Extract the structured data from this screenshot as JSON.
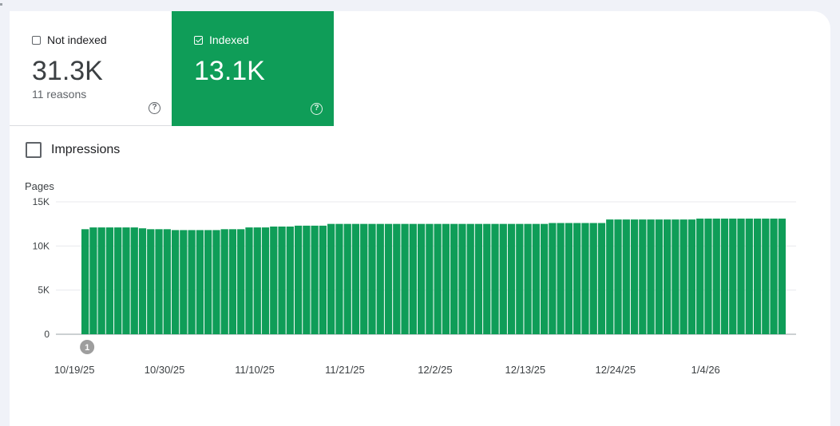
{
  "tiles": {
    "not_indexed": {
      "label": "Not indexed",
      "value": "31.3K",
      "sub": "11 reasons",
      "help_icon": "help-circle-icon"
    },
    "indexed": {
      "label": "Indexed",
      "value": "13.1K",
      "help_icon": "help-circle-icon"
    }
  },
  "impressions": {
    "label": "Impressions"
  },
  "colors": {
    "accent": "#0f9d58",
    "annotation": "#9e9e9e"
  },
  "chart_data": {
    "type": "bar",
    "ylabel": "Pages",
    "ylim": [
      0,
      15000
    ],
    "yticks": [
      0,
      5000,
      10000,
      15000
    ],
    "ytick_labels": [
      "0",
      "5K",
      "10K",
      "15K"
    ],
    "xtick_labels": [
      "10/19/25",
      "10/30/25",
      "11/10/25",
      "11/21/25",
      "12/2/25",
      "12/13/25",
      "12/24/25",
      "1/4/26"
    ],
    "xtick_indices": [
      0,
      11,
      22,
      33,
      44,
      55,
      66,
      77
    ],
    "annotation": {
      "label": "1",
      "index": 0
    },
    "grid": true,
    "series": [
      {
        "values": [
          11900,
          12100,
          12100,
          12100,
          12100,
          12100,
          12100,
          12000,
          11900,
          11900,
          11900,
          11800,
          11800,
          11800,
          11800,
          11800,
          11800,
          11900,
          11900,
          11900,
          12100,
          12100,
          12100,
          12200,
          12200,
          12200,
          12300,
          12300,
          12300,
          12300,
          12500,
          12500,
          12500,
          12500,
          12500,
          12500,
          12500,
          12500,
          12500,
          12500,
          12500,
          12500,
          12500,
          12500,
          12500,
          12500,
          12500,
          12500,
          12500,
          12500,
          12500,
          12500,
          12500,
          12500,
          12500,
          12500,
          12500,
          12600,
          12600,
          12600,
          12600,
          12600,
          12600,
          12600,
          13000,
          13000,
          13000,
          13000,
          13000,
          13000,
          13000,
          13000,
          13000,
          13000,
          13000,
          13100,
          13100,
          13100,
          13100,
          13100,
          13100,
          13100,
          13100,
          13100,
          13100,
          13100
        ]
      }
    ]
  }
}
